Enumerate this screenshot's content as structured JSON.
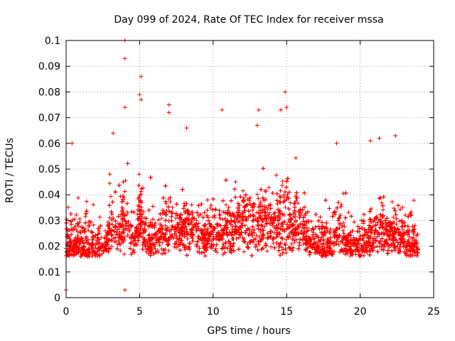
{
  "chart_data": {
    "type": "scatter",
    "title": "Day 099 of 2024, Rate Of TEC Index for receiver mssa",
    "xlabel": "GPS time / hours",
    "ylabel": "ROTI / TECUs",
    "xlim": [
      0,
      25
    ],
    "ylim": [
      0,
      0.1
    ],
    "xticks": [
      0,
      5,
      10,
      15,
      20,
      25
    ],
    "yticks": [
      0,
      0.01,
      0.02,
      0.03,
      0.04,
      0.05,
      0.06,
      0.07,
      0.08,
      0.09,
      0.1
    ],
    "ytick_labels": [
      "0",
      "0.01",
      "0.02",
      "0.03",
      "0.04",
      "0.05",
      "0.06",
      "0.07",
      "0.08",
      "0.09",
      "0.1"
    ],
    "grid": true,
    "marker": "+",
    "marker_color": "#ff0000",
    "series": [
      {
        "name": "ROTI",
        "description_values": "dense cloud of ~5000 samples between 0.005 and 0.03 TECU/s over 0-24 h, with peaks",
        "notable_points": [
          [
            4.0,
            0.1
          ],
          [
            4.0,
            0.093
          ],
          [
            5.1,
            0.086
          ],
          [
            5.0,
            0.079
          ],
          [
            5.1,
            0.077
          ],
          [
            4.0,
            0.074
          ],
          [
            7.0,
            0.075
          ],
          [
            7.0,
            0.072
          ],
          [
            14.9,
            0.08
          ],
          [
            15.0,
            0.074
          ],
          [
            10.6,
            0.073
          ],
          [
            13.1,
            0.073
          ],
          [
            14.6,
            0.073
          ],
          [
            13.0,
            0.067
          ],
          [
            8.2,
            0.066
          ],
          [
            3.2,
            0.064
          ],
          [
            22.4,
            0.063
          ],
          [
            21.3,
            0.062
          ],
          [
            0.4,
            0.06
          ],
          [
            20.7,
            0.061
          ],
          [
            18.4,
            0.06
          ],
          [
            0.0,
            0.003
          ],
          [
            4.0,
            0.003
          ]
        ]
      }
    ]
  }
}
